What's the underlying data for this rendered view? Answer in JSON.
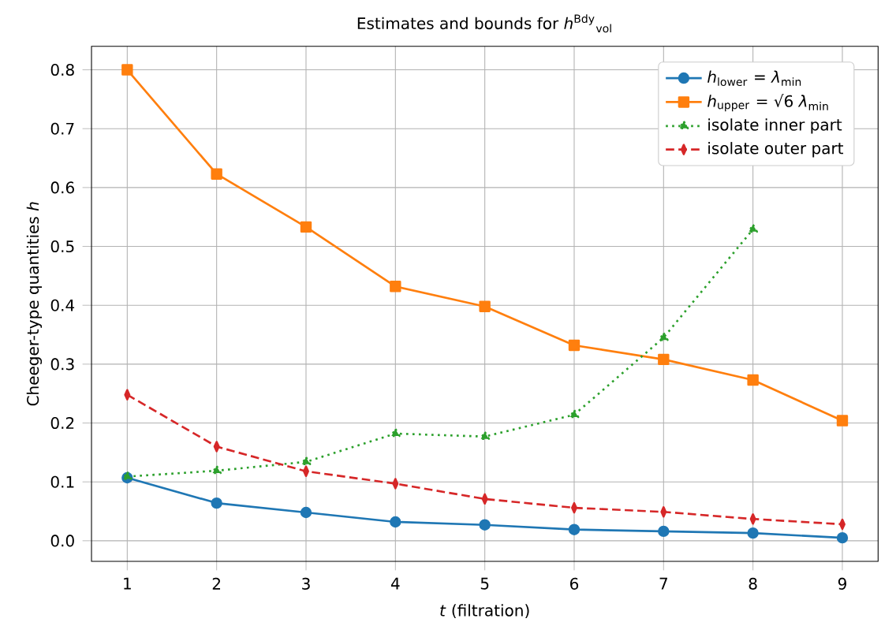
{
  "chart_data": {
    "type": "line",
    "title": "Estimates and bounds for *h*$^{Bdy}$$_{vol}$",
    "xlabel": "*t* (filtration)",
    "ylabel": "Cheeger-type quantities *h*",
    "x": [
      1,
      2,
      3,
      4,
      5,
      6,
      7,
      8,
      9
    ],
    "series": [
      {
        "name": "*h*$_{lower}$ = *λ*$_{min}$",
        "color": "#1f77b4",
        "marker": "circle",
        "line_style": "solid",
        "values": [
          0.107,
          0.064,
          0.048,
          0.032,
          0.027,
          0.019,
          0.016,
          0.013,
          0.005
        ]
      },
      {
        "name": "*h*$_{upper}$ = √6 *λ*$_{min}$",
        "color": "#ff7f0e",
        "marker": "square",
        "line_style": "solid",
        "values": [
          0.8,
          0.623,
          0.533,
          0.432,
          0.398,
          0.332,
          0.308,
          0.273,
          0.204
        ]
      },
      {
        "name": "isolate inner part",
        "color": "#2ca02c",
        "marker": "triangle",
        "line_style": "dotted",
        "values": [
          0.109,
          0.119,
          0.134,
          0.182,
          0.177,
          0.214,
          0.345,
          0.529,
          null
        ]
      },
      {
        "name": "isolate outer part",
        "color": "#d62728",
        "marker": "diamond",
        "line_style": "dashed",
        "values": [
          0.248,
          0.16,
          0.118,
          0.097,
          0.071,
          0.056,
          0.049,
          0.037,
          0.028
        ]
      }
    ],
    "xlim": [
      0.6,
      9.4
    ],
    "ylim": [
      -0.035,
      0.84
    ],
    "xticks": [
      1,
      2,
      3,
      4,
      5,
      6,
      7,
      8,
      9
    ],
    "yticks": [
      {
        "value": 0,
        "label": "0.0"
      },
      0.1,
      0.2,
      0.3,
      0.4,
      0.5,
      0.6,
      0.7,
      0.8
    ],
    "grid": true,
    "legend": "top right"
  }
}
